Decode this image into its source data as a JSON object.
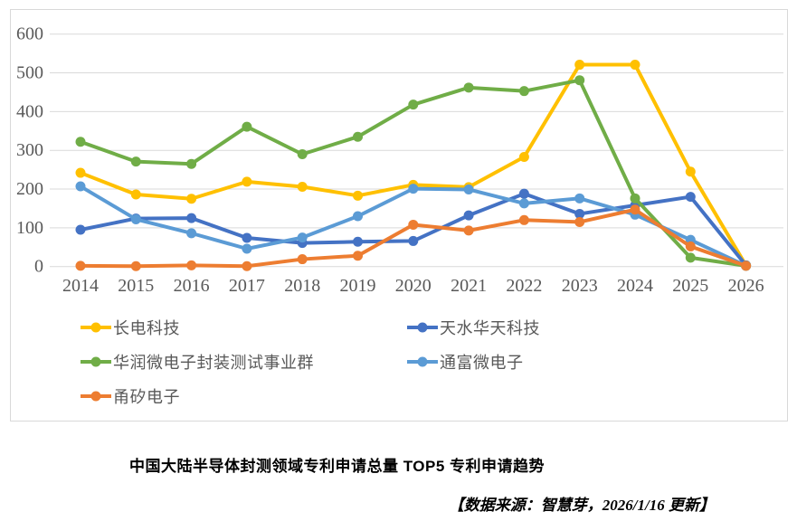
{
  "title": "中国大陆半导体封测领域专利申请总量 TOP5 专利申请趋势",
  "source_note": "【数据来源：智慧芽，2026/1/16 更新】",
  "colors": {
    "gridline": "#d9d9d9",
    "axis_text": "#595959",
    "legend_text": "#595959",
    "frame_border": "#d9d9d9"
  },
  "chart_data": {
    "type": "line",
    "x": [
      2014,
      2015,
      2016,
      2017,
      2018,
      2019,
      2020,
      2021,
      2022,
      2023,
      2024,
      2025,
      2026
    ],
    "series": [
      {
        "name": "长电科技",
        "color": "#FFC000",
        "values": [
          242,
          186,
          175,
          219,
          206,
          183,
          211,
          205,
          283,
          521,
          521,
          245,
          3
        ]
      },
      {
        "name": "天水华天科技",
        "color": "#4472C4",
        "values": [
          95,
          124,
          125,
          74,
          61,
          64,
          66,
          132,
          188,
          136,
          158,
          180,
          3
        ]
      },
      {
        "name": "华润微电子封装测试事业群",
        "color": "#70AD47",
        "values": [
          322,
          271,
          265,
          361,
          290,
          335,
          418,
          462,
          453,
          481,
          176,
          23,
          2
        ]
      },
      {
        "name": "通富微电子",
        "color": "#5B9BD5",
        "values": [
          207,
          122,
          86,
          46,
          75,
          130,
          201,
          199,
          163,
          176,
          134,
          69,
          2
        ]
      },
      {
        "name": "甬矽电子",
        "color": "#ED7D31",
        "values": [
          2,
          1,
          3,
          1,
          19,
          28,
          108,
          93,
          120,
          115,
          147,
          52,
          2
        ]
      }
    ],
    "xlabel": "",
    "ylabel": "",
    "ylim": [
      0,
      600
    ],
    "y_ticks": [
      0,
      100,
      200,
      300,
      400,
      500,
      600
    ],
    "grid": true,
    "legend_position": "bottom-left-two-columns",
    "legend_order": [
      "长电科技",
      "天水华天科技",
      "华润微电子封装测试事业群",
      "通富微电子",
      "甬矽电子"
    ]
  }
}
